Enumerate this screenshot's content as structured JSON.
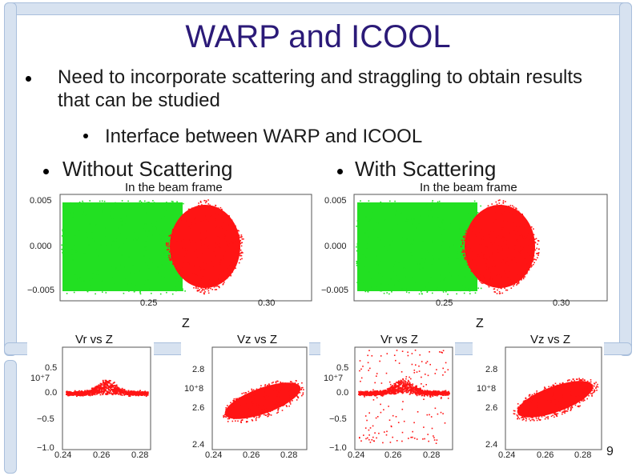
{
  "title": "WARP and ICOOL",
  "bullets": {
    "main": "Need to incorporate scattering and straggling to obtain results that can be studied",
    "sub": "Interface between WARP and ICOOL",
    "left": "Without Scattering",
    "right": "With Scattering"
  },
  "plots": {
    "beam_title": "In the beam frame",
    "beam_yticks": [
      "0.005",
      "0.000",
      "−0.005"
    ],
    "beam_xticks": [
      "0.25",
      "0.30"
    ],
    "z_label": "Z",
    "vr_title": "Vr vs Z",
    "vr_scale": "10⁺7",
    "vr_yticks": [
      "0.5",
      "0.0",
      "−0.5",
      "−1.0"
    ],
    "vz_title": "Vz vs Z",
    "vz_scale": "10⁺8",
    "vz_yticks": [
      "2.8",
      "2.6",
      "2.4"
    ],
    "bottom_xticks": [
      "0.24",
      "0.26",
      "0.28"
    ]
  },
  "page_number": "9",
  "colors": {
    "green": "#22e022",
    "red": "#ff1414",
    "title": "#2b1a78"
  }
}
